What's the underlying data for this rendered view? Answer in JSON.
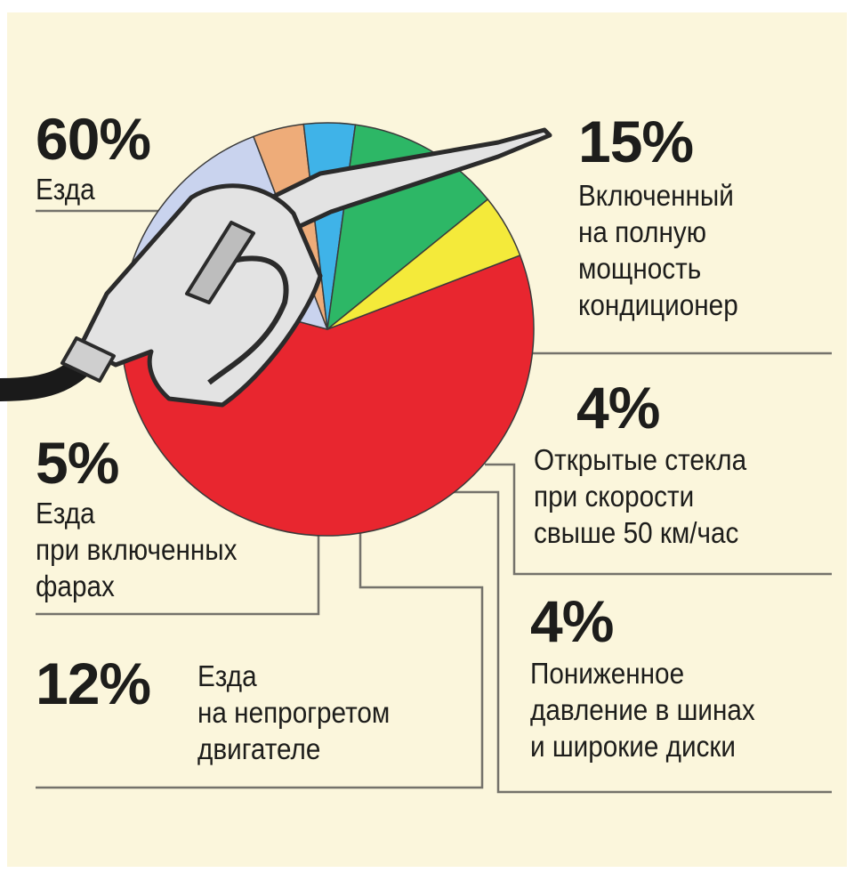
{
  "chart_data": {
    "type": "pie",
    "slices": [
      {
        "value": 60,
        "label": "60%",
        "description": "Езда",
        "color": "#e8262f"
      },
      {
        "value": 15,
        "label": "15%",
        "description": "Включенный\nна полную\nмощность\nкондиционер",
        "color": "#c9d3ee"
      },
      {
        "value": 4,
        "label": "4%",
        "description": "Открытые стекла\nпри скорости\nсвыше 50 км/час",
        "color": "#eeac79"
      },
      {
        "value": 4,
        "label": "4%",
        "description": "Пониженное\nдавление в шинах\nи широкие диски",
        "color": "#3fb3e8"
      },
      {
        "value": 12,
        "label": "12%",
        "description": "Езда\nна непрогретом\nдвигателе",
        "color": "#2db766"
      },
      {
        "value": 5,
        "label": "5%",
        "description": "Езда\nпри включенных\nфарах",
        "color": "#f4ea3a"
      }
    ]
  }
}
